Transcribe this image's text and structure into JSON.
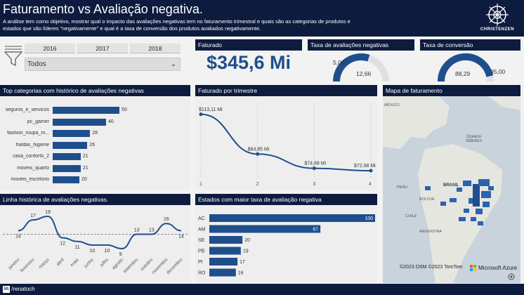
{
  "header": {
    "title": "Faturamento vs Avaliação negativa.",
    "subtitle": "A análise tem como objetivo, mostrar qual o impacto das avaliações negativas tem no faturamento trimestral e quais são as categorias de produtos e estados que são líderes \"negativamente\" e qual é a taxa de conversão dos produtos avaliados negativamente.",
    "logo_text": "CHRISTENZEN",
    "logo_icon": "ship-wheel-icon"
  },
  "filters": {
    "funnel_icon": "funnel-icon",
    "years": [
      "2016",
      "2017",
      "2018"
    ],
    "dropdown_value": "Todos",
    "dropdown_icon": "chevron-down-icon"
  },
  "kpis": {
    "faturado_title": "Faturado",
    "faturado_value": "$345,6 Mi",
    "taxa_neg_title": "Taxa de avaliações negativas",
    "taxa_neg_value": "12,66",
    "taxa_neg_target": "5,00",
    "taxa_neg_fraction": 0.6,
    "taxa_conv_title": "Taxa de conversão",
    "taxa_conv_value": "88,29",
    "taxa_conv_target": "95,00",
    "taxa_conv_fraction": 0.93
  },
  "top_categories": {
    "title": "Top categorias com histórico de avaliações negativas",
    "color": "#1f4e8c",
    "items": [
      {
        "label": "seguros_e_servicos",
        "value": 50,
        "display": "50"
      },
      {
        "label": "pc_gamer",
        "value": 40,
        "display": "40"
      },
      {
        "label": "fashion_roupa_m...",
        "value": 28,
        "display": "28"
      },
      {
        "label": "fraldas_higiene",
        "value": 26,
        "display": "26"
      },
      {
        "label": "casa_conforto_2",
        "value": 21,
        "display": "21"
      },
      {
        "label": "moveis_quarto",
        "value": 21,
        "display": "21"
      },
      {
        "label": "moveis_escritorio",
        "value": 20,
        "display": "20"
      }
    ]
  },
  "chart_data": [
    {
      "type": "line",
      "title": "Faturado por trimestre",
      "x": [
        "1",
        "2",
        "3",
        "4"
      ],
      "series": [
        {
          "values": [
            113.11,
            84.85,
            74.68,
            72.98
          ]
        }
      ],
      "labels": [
        "$113,11 Mi",
        "$84,85 Mi",
        "$74,68 Mi",
        "$72,98 Mi"
      ],
      "color": "#1f4e8c"
    },
    {
      "type": "line",
      "title": "Linha histórica de avaliações negativas.",
      "categories": [
        "janeiro",
        "fevereiro",
        "março",
        "abril",
        "maio",
        "junho",
        "julho",
        "agosto",
        "setembro",
        "outubro",
        "novembro",
        "dezembro"
      ],
      "series": [
        {
          "values": [
            14,
            17,
            18,
            12,
            11,
            10,
            10,
            9,
            13,
            13,
            16,
            14
          ]
        }
      ],
      "average": 13,
      "color": "#1f4e8c"
    },
    {
      "type": "bar",
      "title": "Estados com maior taxa de avaliação negativa",
      "categories": [
        "AC",
        "AM",
        "SE",
        "PB",
        "PI",
        "RO"
      ],
      "values": [
        100,
        67,
        20,
        19,
        17,
        16
      ],
      "display": [
        "100",
        "67",
        "20",
        "19",
        "17",
        "16"
      ],
      "color": "#1f4e8c"
    }
  ],
  "map": {
    "title": "Mapa de faturamento",
    "labels": {
      "ocean1": "Oceano",
      "ocean2": "Atlântico",
      "mexico": "MÉXICO",
      "brasil": "BRASIL",
      "peru": "PERU",
      "bolivia": "BOLÍVIA",
      "chile": "CHILE",
      "argentina": "ARGENTINA"
    },
    "copyright": "©2023 OSM ©2023 TomTom",
    "provider": "Microsoft Azure",
    "provider_icon": "microsoft-logo-icon",
    "target_icon": "locate-icon"
  },
  "footer": {
    "linkedin_icon": "linkedin-icon",
    "handle": "/renatoch"
  }
}
